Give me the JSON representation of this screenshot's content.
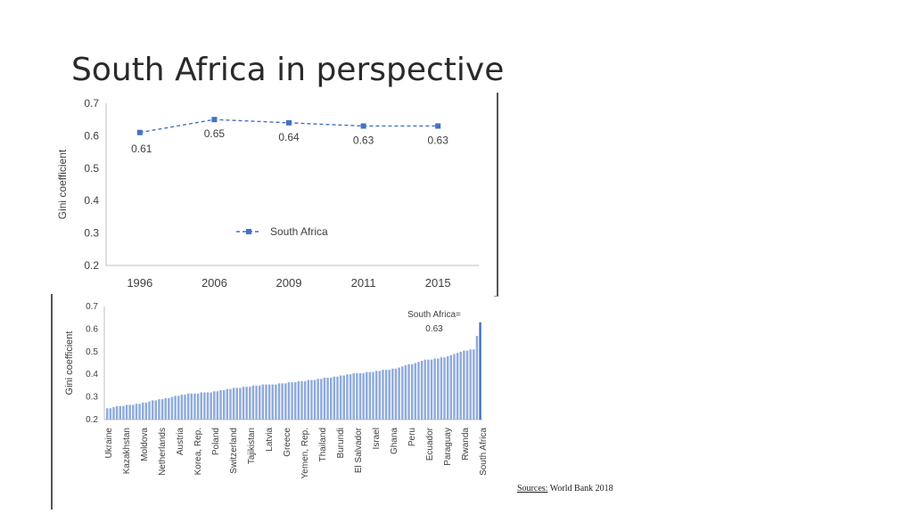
{
  "slide": {
    "title": "South Africa in perspective",
    "sources_label": "Sources:",
    "sources_text": "World Bank 2018"
  },
  "colors": {
    "series": "#4472c4",
    "bar": "#8eaadb",
    "axis": "#bfbfbf",
    "text": "#404040"
  },
  "chart_data": [
    {
      "type": "line",
      "ylabel": "Gini coefficient",
      "x": [
        "1996",
        "2006",
        "2009",
        "2011",
        "2015"
      ],
      "series": [
        {
          "name": "South Africa",
          "values": [
            0.61,
            0.65,
            0.64,
            0.63,
            0.63
          ]
        }
      ],
      "data_labels": [
        "0.61",
        "0.65",
        "0.64",
        "0.63",
        "0.63"
      ],
      "ylim": [
        0.2,
        0.7
      ],
      "yticks": [
        "0.2",
        "0.3",
        "0.4",
        "0.5",
        "0.6",
        "0.7"
      ],
      "legend": "center",
      "grid": false
    },
    {
      "type": "bar",
      "ylabel": "Gini coefficient",
      "ylim": [
        0.2,
        0.7
      ],
      "yticks": [
        "0.2",
        "0.3",
        "0.4",
        "0.5",
        "0.6",
        "0.7"
      ],
      "tick_labels": [
        "Ukraine",
        "Kazakhstan",
        "Moldova",
        "Netherlands",
        "Austria",
        "Korea, Rep.",
        "Poland",
        "Switzerland",
        "Tajikistan",
        "Latvia",
        "Greece",
        "Yemen, Rep.",
        "Thailand",
        "Burundi",
        "El Salvador",
        "Israel",
        "Ghana",
        "Peru",
        "Ecuador",
        "Paraguay",
        "Rwanda",
        "South Africa"
      ],
      "annotation": [
        "South Africa=",
        "0.63"
      ],
      "values": [
        0.25,
        0.25,
        0.255,
        0.26,
        0.26,
        0.26,
        0.265,
        0.265,
        0.265,
        0.27,
        0.27,
        0.275,
        0.275,
        0.28,
        0.285,
        0.285,
        0.29,
        0.29,
        0.295,
        0.295,
        0.3,
        0.305,
        0.305,
        0.31,
        0.31,
        0.315,
        0.315,
        0.315,
        0.315,
        0.32,
        0.32,
        0.32,
        0.32,
        0.325,
        0.325,
        0.33,
        0.33,
        0.335,
        0.335,
        0.34,
        0.34,
        0.34,
        0.345,
        0.345,
        0.345,
        0.35,
        0.35,
        0.35,
        0.355,
        0.355,
        0.355,
        0.355,
        0.355,
        0.36,
        0.36,
        0.36,
        0.365,
        0.365,
        0.365,
        0.37,
        0.37,
        0.37,
        0.375,
        0.375,
        0.375,
        0.38,
        0.38,
        0.385,
        0.385,
        0.385,
        0.39,
        0.39,
        0.395,
        0.395,
        0.4,
        0.4,
        0.405,
        0.405,
        0.405,
        0.405,
        0.41,
        0.41,
        0.41,
        0.415,
        0.415,
        0.42,
        0.42,
        0.42,
        0.425,
        0.425,
        0.43,
        0.435,
        0.44,
        0.445,
        0.445,
        0.45,
        0.455,
        0.46,
        0.465,
        0.465,
        0.465,
        0.47,
        0.47,
        0.475,
        0.475,
        0.48,
        0.485,
        0.49,
        0.495,
        0.5,
        0.505,
        0.505,
        0.51,
        0.51,
        0.57,
        0.63
      ]
    }
  ]
}
